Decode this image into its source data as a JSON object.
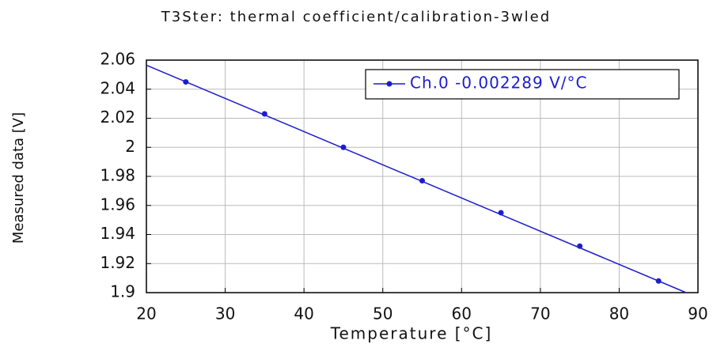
{
  "chart_data": {
    "type": "line",
    "title": "T3Ster: thermal coefficient/calibration-3wled",
    "x_label": "Temperature  [°C]",
    "y_label": "Measured data [V]",
    "series": [
      {
        "name": "Ch.0 -0.002289 V/°C",
        "color": "#1c1ccf",
        "x": [
          25,
          35,
          45,
          55,
          65,
          75,
          85
        ],
        "values": [
          2.045,
          2.023,
          2.0,
          1.977,
          1.955,
          1.932,
          1.908
        ],
        "fit_line": {
          "x": [
            20,
            88.5
          ],
          "values": [
            2.0565,
            1.9
          ]
        }
      }
    ],
    "xlim": [
      20,
      90
    ],
    "xticks": [
      20,
      30,
      40,
      50,
      60,
      70,
      80,
      90
    ],
    "ylim": [
      1.9,
      2.06
    ],
    "yticks": [
      1.9,
      1.92,
      1.94,
      1.96,
      1.98,
      2,
      2.02,
      2.04,
      2.06
    ],
    "grid": true,
    "legend": "upper right"
  }
}
